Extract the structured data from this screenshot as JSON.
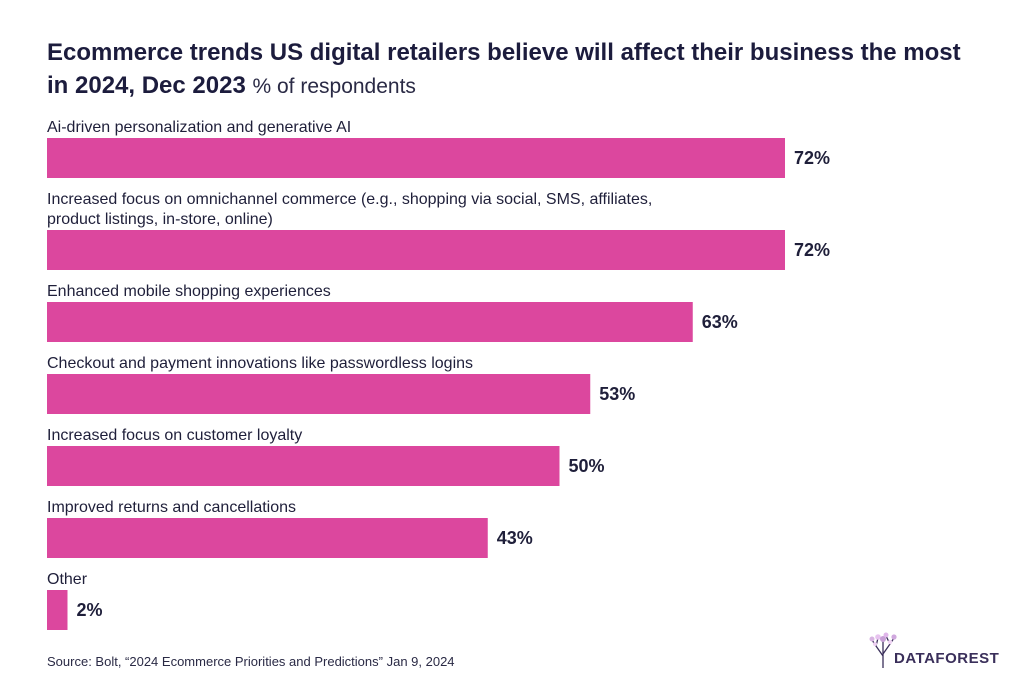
{
  "header": {
    "title": "Ecommerce trends US digital retailers believe will affect their business the most in 2024, Dec 2023",
    "subtitle": "% of respondents"
  },
  "chart_data": {
    "type": "bar",
    "orientation": "horizontal",
    "title": "Ecommerce trends US digital retailers believe will affect their business the most in 2024, Dec 2023",
    "subtitle": "% of respondents",
    "xlabel": "",
    "ylabel": "",
    "xlim": [
      0,
      100
    ],
    "grid": false,
    "bar_color": "#dc479e",
    "categories": [
      [
        "Ai-driven personalization and generative AI"
      ],
      [
        "Increased focus on omnichannel commerce (e.g., shopping via social, SMS, affiliates,",
        "product listings, in-store, online)"
      ],
      [
        "Enhanced mobile shopping experiences"
      ],
      [
        "Checkout and payment innovations like passwordless logins"
      ],
      [
        "Increased focus on customer loyalty"
      ],
      [
        "Improved returns and cancellations"
      ],
      [
        "Other"
      ]
    ],
    "values": [
      72,
      72,
      63,
      53,
      50,
      43,
      2
    ],
    "value_labels": [
      "72%",
      "72%",
      "63%",
      "53%",
      "50%",
      "43%",
      "2%"
    ]
  },
  "footer": {
    "source": "Source: Bolt, “2024 Ecommerce Priorities and Predictions” Jan 9, 2024",
    "logo_text": "DATAFOREST"
  },
  "colors": {
    "bar": "#dc479e",
    "text": "#1f1f3a",
    "logo_tree": "#c7a6d8"
  }
}
